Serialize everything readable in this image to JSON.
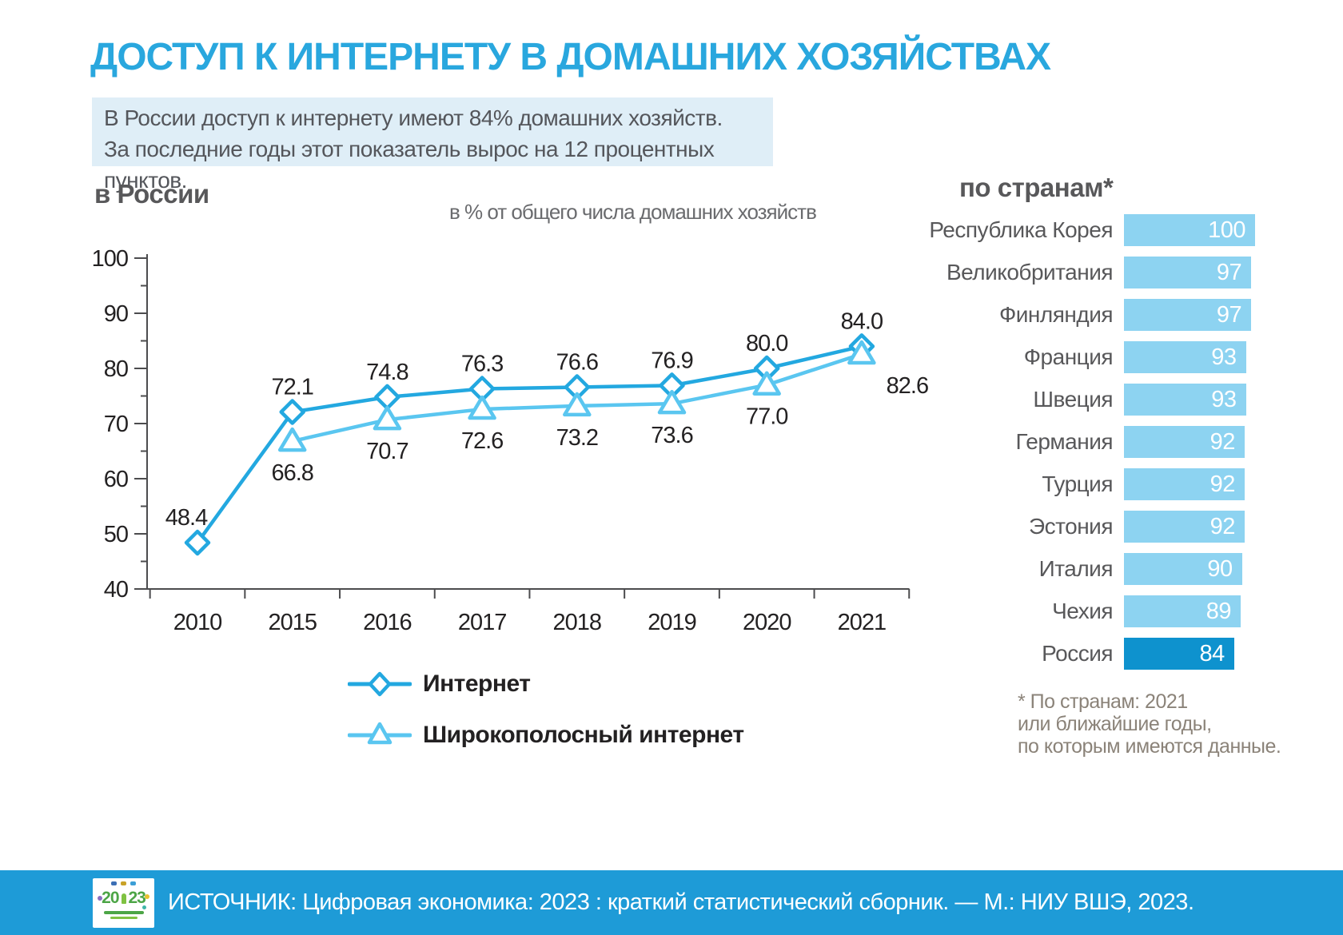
{
  "page": {
    "title": "ДОСТУП К ИНТЕРНЕТУ В ДОМАШНИХ ХОЗЯЙСТВАХ",
    "lead_lines": [
      "В России доступ к интернету имеют 84% домашних хозяйств.",
      "За последние годы этот показатель вырос на 12 процентных пунктов."
    ],
    "footer": {
      "source_text": "ИСТОЧНИК: Цифровая экономика: 2023 : краткий статистический сборник. — М.: НИУ ВШЭ, 2023.",
      "logo_year_left": "20",
      "logo_year_right": "23"
    }
  },
  "colors": {
    "title_blue": "#29a7de",
    "internet_line": "#23a8e0",
    "broadband_line": "#5ac6f0",
    "bar_light": "#8dd3f1",
    "bar_highlight": "#0e92ce",
    "footer_bg": "#1e9bd7",
    "lead_box_bg": "#dfeef7",
    "heading_gray": "#58585a",
    "text_dark": "#232122",
    "footnote_gray": "#8b8379",
    "axis_gray": "#4c4c4e"
  },
  "chart_data": [
    {
      "type": "line",
      "section_title": "в России",
      "units_note": "в % от общего числа домашних хозяйств",
      "x": [
        "2010",
        "2015",
        "2016",
        "2017",
        "2018",
        "2019",
        "2020",
        "2021"
      ],
      "ylim": [
        40,
        100
      ],
      "yticks": [
        40,
        50,
        60,
        70,
        80,
        90,
        100
      ],
      "grid": false,
      "legend_position": "bottom",
      "series": [
        {
          "name": "Интернет",
          "marker": "diamond",
          "color": "#23a8e0",
          "values": [
            48.4,
            72.1,
            74.8,
            76.3,
            76.6,
            76.9,
            80.0,
            84.0
          ]
        },
        {
          "name": "Широкополосный интернет",
          "marker": "triangle",
          "color": "#5ac6f0",
          "values": [
            null,
            66.8,
            70.7,
            72.6,
            73.2,
            73.6,
            77.0,
            82.6
          ]
        }
      ]
    },
    {
      "type": "bar",
      "orientation": "horizontal",
      "section_title": "по странам*",
      "categories": [
        "Республика Корея",
        "Великобритания",
        "Финляндия",
        "Франция",
        "Швеция",
        "Германия",
        "Турция",
        "Эстония",
        "Италия",
        "Чехия",
        "Россия"
      ],
      "values": [
        100,
        97,
        97,
        93,
        93,
        92,
        92,
        92,
        90,
        89,
        84
      ],
      "xlim": [
        0,
        100
      ],
      "highlight_category": "Россия",
      "footnote_lines": [
        "* По странам: 2021",
        "или ближайшие годы,",
        "по которым имеются данные."
      ]
    }
  ]
}
